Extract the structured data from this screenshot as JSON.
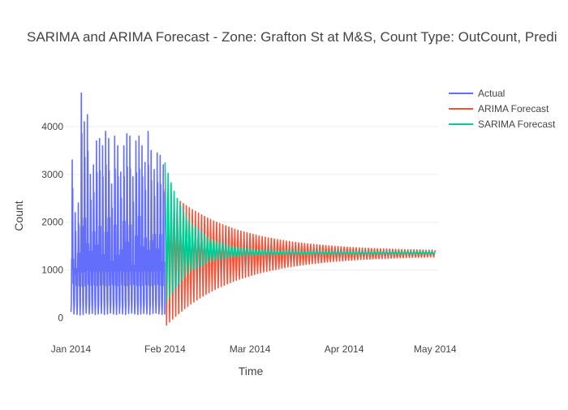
{
  "chart_data": {
    "type": "line",
    "title": "SARIMA and ARIMA Forecast - Zone: Grafton St at M&S, Count Type: OutCount, Predi",
    "xlabel": "Time",
    "ylabel": "Count",
    "x_ticks": [
      "Jan 2014",
      "Feb 2014",
      "Mar 2014",
      "Apr 2014",
      "May 2014"
    ],
    "y_ticks": [
      0,
      1000,
      2000,
      3000,
      4000
    ],
    "x_range": [
      "2013-12-30",
      "2014-05-02"
    ],
    "ylim": [
      -400,
      4950
    ],
    "grid": true,
    "legend_position": "top-right",
    "series": [
      {
        "name": "Actual",
        "color": "#636efa",
        "date_range": [
          "2014-01-01",
          "2014-01-31"
        ],
        "daily_peaks": [
          3300,
          2200,
          2400,
          4700,
          4100,
          4250,
          3000,
          3200,
          3700,
          3750,
          3600,
          3900,
          3750,
          2800,
          3800,
          3600,
          3050,
          3600,
          3850,
          3800,
          2950,
          3700,
          3800,
          3600,
          3250,
          3900,
          3500,
          3100,
          3450,
          3400,
          3200
        ],
        "daily_troughs": [
          120,
          80,
          70,
          60,
          70,
          100,
          80,
          90,
          70,
          80,
          90,
          70,
          80,
          100,
          80,
          70,
          90,
          80,
          70,
          90,
          100,
          80,
          70,
          80,
          90,
          80,
          70,
          90,
          100,
          80,
          70
        ]
      },
      {
        "name": "ARIMA Forecast",
        "color": "#ef553b",
        "date_range": [
          "2014-02-01",
          "2014-05-01"
        ],
        "start_max": 2700,
        "start_min": -150,
        "end_max": 1390,
        "end_min": 1300
      },
      {
        "name": "SARIMA Forecast",
        "color": "#00cc96",
        "date_range": [
          "2014-02-01",
          "2014-05-01"
        ],
        "start_max": 3250,
        "start_min": 300,
        "end_max": 1390,
        "end_min": 1330
      }
    ]
  }
}
